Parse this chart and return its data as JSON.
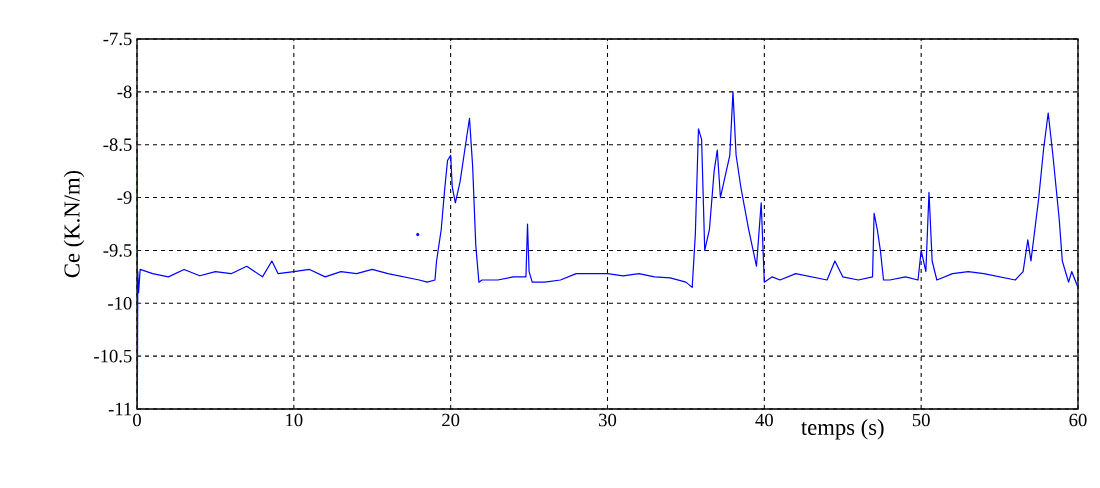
{
  "chart_data": {
    "type": "line",
    "xlabel": "temps (s)",
    "ylabel": "Ce (K.N/m)",
    "xlim": [
      0,
      60
    ],
    "ylim": [
      -11,
      -7.5
    ],
    "xticks": [
      0,
      10,
      20,
      30,
      40,
      50,
      60
    ],
    "yticks": [
      -11,
      -10.5,
      -10,
      -9.5,
      -9,
      -8.5,
      -8,
      -7.5
    ],
    "grid": true,
    "line_style": "solid",
    "marker": "none",
    "series": [
      {
        "color": "#0000ff",
        "x": [
          0,
          0.02,
          0.05,
          0.1,
          0.2,
          1,
          2,
          3,
          4,
          5,
          6,
          7,
          8,
          8.6,
          9,
          10,
          11,
          12,
          13,
          14,
          15,
          16,
          17,
          18,
          18.5,
          19,
          19.1,
          19.4,
          19.6,
          19.8,
          20,
          20.1,
          20.3,
          20.6,
          20.9,
          21.2,
          21.4,
          21.6,
          21.8,
          22,
          23,
          24,
          24.8,
          24.9,
          25,
          25.2,
          26,
          27,
          28,
          29,
          30,
          31,
          32,
          33,
          34,
          35,
          35.4,
          35.6,
          35.8,
          36,
          36.2,
          36.5,
          36.8,
          37,
          37.2,
          37.5,
          37.8,
          38,
          38.2,
          38.5,
          39,
          39.5,
          39.8,
          40,
          40.5,
          41,
          42,
          43,
          44,
          44.5,
          45,
          46,
          46.9,
          47,
          47.2,
          47.4,
          47.6,
          48,
          49,
          49.8,
          50,
          50.3,
          50.5,
          50.7,
          51,
          52,
          53,
          54,
          55,
          56,
          56.5,
          56.8,
          57,
          57.5,
          57.8,
          58.1,
          58.4,
          58.8,
          59,
          59.4,
          59.6,
          60
        ],
        "values": [
          -8.55,
          -11,
          -9.7,
          -9.9,
          -9.68,
          -9.72,
          -9.75,
          -9.68,
          -9.74,
          -9.7,
          -9.72,
          -9.65,
          -9.75,
          -9.6,
          -9.72,
          -9.7,
          -9.68,
          -9.75,
          -9.7,
          -9.72,
          -9.68,
          -9.72,
          -9.75,
          -9.78,
          -9.8,
          -9.78,
          -9.6,
          -9.3,
          -8.95,
          -8.65,
          -8.6,
          -8.9,
          -9.05,
          -8.85,
          -8.55,
          -8.25,
          -8.7,
          -9.45,
          -9.8,
          -9.78,
          -9.78,
          -9.75,
          -9.75,
          -9.25,
          -9.7,
          -9.8,
          -9.8,
          -9.78,
          -9.72,
          -9.72,
          -9.72,
          -9.74,
          -9.72,
          -9.75,
          -9.76,
          -9.8,
          -9.85,
          -9.35,
          -8.35,
          -8.45,
          -9.5,
          -9.3,
          -8.75,
          -8.55,
          -9.0,
          -8.8,
          -8.6,
          -8.0,
          -8.6,
          -8.9,
          -9.3,
          -9.65,
          -9.05,
          -9.8,
          -9.75,
          -9.78,
          -9.72,
          -9.75,
          -9.78,
          -9.6,
          -9.75,
          -9.78,
          -9.75,
          -9.15,
          -9.3,
          -9.5,
          -9.78,
          -9.78,
          -9.75,
          -9.78,
          -9.5,
          -9.7,
          -8.95,
          -9.6,
          -9.78,
          -9.72,
          -9.7,
          -9.72,
          -9.75,
          -9.78,
          -9.7,
          -9.4,
          -9.6,
          -9.0,
          -8.55,
          -8.2,
          -8.6,
          -9.2,
          -9.6,
          -9.8,
          -9.7,
          -9.85
        ]
      },
      {
        "type": "scatter",
        "marker": "circle",
        "color": "#0000ff",
        "x": [
          17.9
        ],
        "values": [
          -9.35
        ]
      }
    ]
  }
}
